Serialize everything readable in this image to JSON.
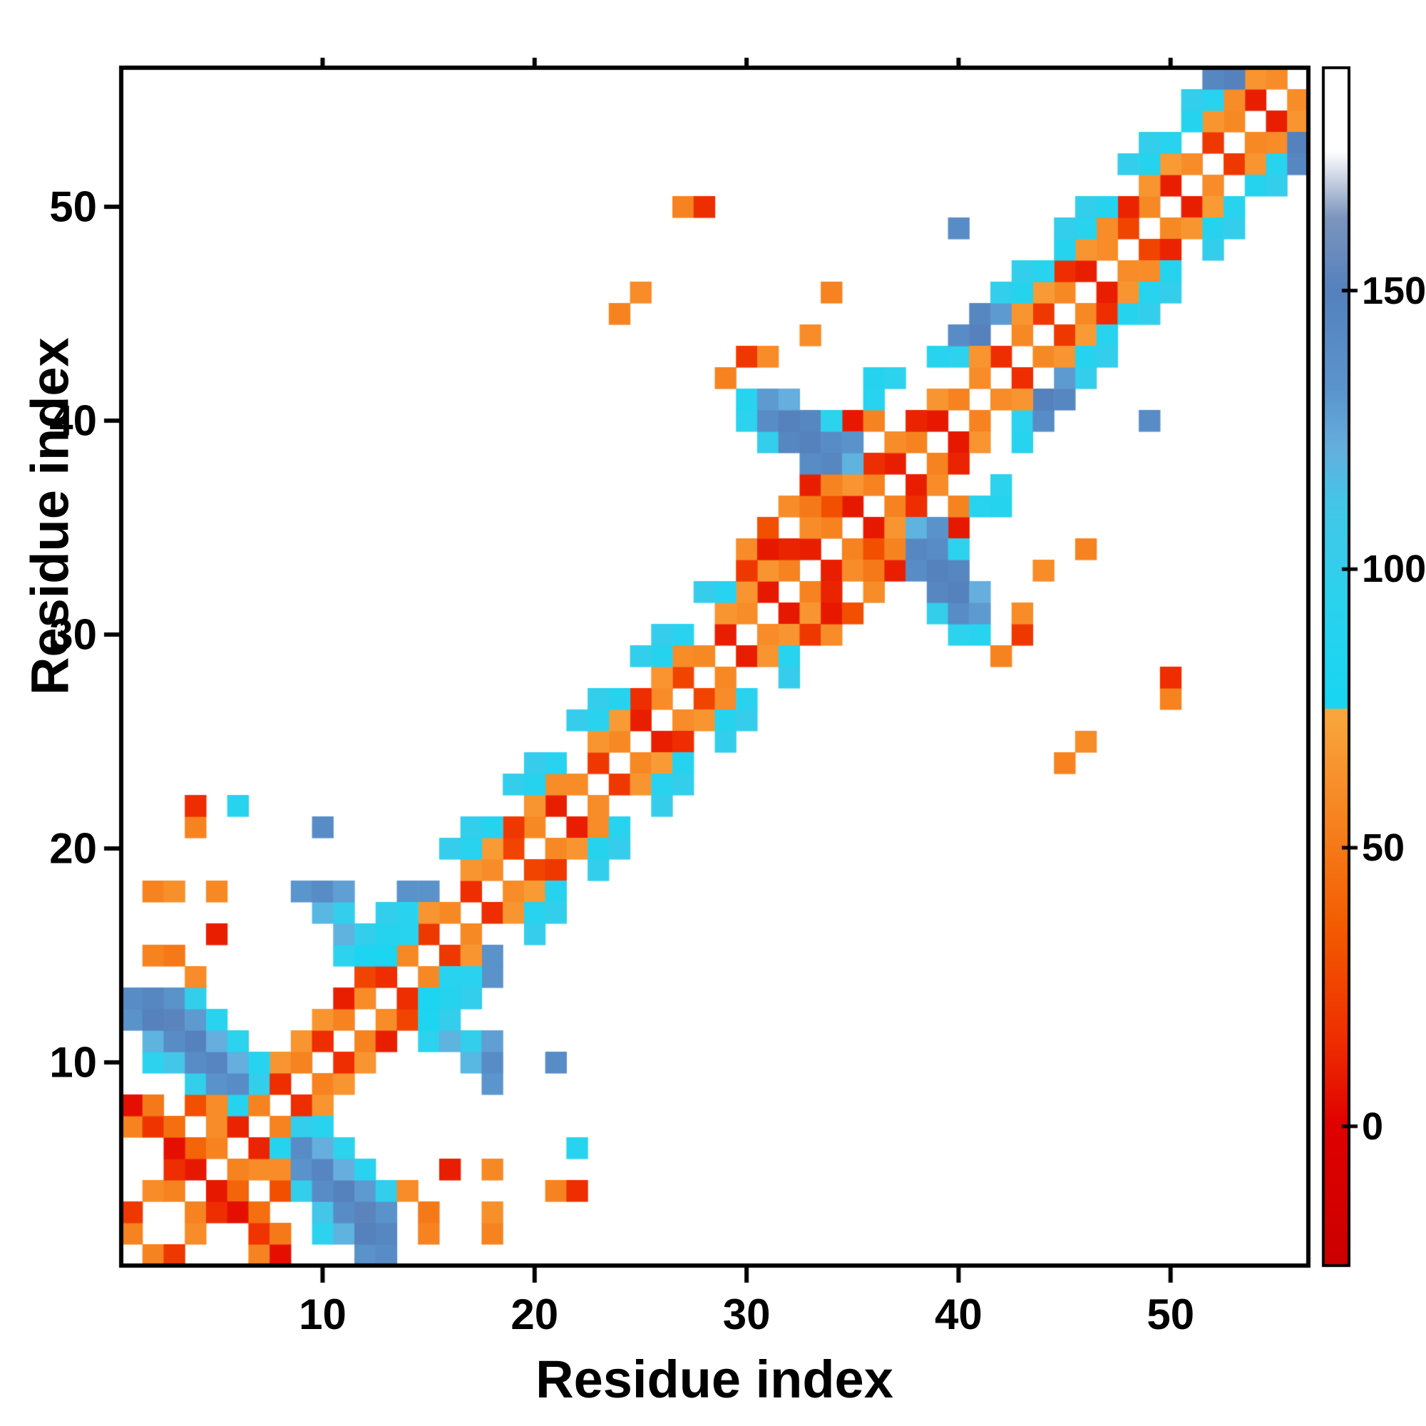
{
  "figure": {
    "xlabel": "Residue index",
    "ylabel": "Residue index"
  },
  "axes": {
    "x_ticks": [
      10,
      20,
      30,
      40,
      50
    ],
    "y_ticks": [
      10,
      20,
      30,
      40,
      50
    ],
    "range": [
      0.5,
      56.5
    ]
  },
  "colorbar": {
    "ticks": [
      0,
      50,
      100,
      150
    ],
    "min": -25,
    "max": 190
  },
  "chart_data": {
    "type": "heatmap",
    "title": "",
    "xlabel": "Residue index",
    "ylabel": "Residue index",
    "n_residues": 56,
    "symmetric": true,
    "xlim": [
      0.5,
      56.5
    ],
    "ylim": [
      0.5,
      56.5
    ],
    "legend": "colorbar right, range ~0-175",
    "colormap_stops": [
      [
        -25,
        "#cc0000"
      ],
      [
        0,
        "#e00000"
      ],
      [
        15,
        "#ee2d00"
      ],
      [
        35,
        "#f35a00"
      ],
      [
        55,
        "#f68320"
      ],
      [
        73,
        "#f9a43c"
      ],
      [
        74.9,
        "#f9a43c"
      ],
      [
        75,
        "#17d6f2"
      ],
      [
        95,
        "#2cd2ee"
      ],
      [
        112,
        "#44c6e8"
      ],
      [
        122,
        "#65aedd"
      ],
      [
        132,
        "#5b95cd"
      ],
      [
        150,
        "#5581bd"
      ],
      [
        163,
        "#7b95bd"
      ],
      [
        170,
        "#c9d2e2"
      ],
      [
        175,
        "#ffffff"
      ],
      [
        190,
        "#ffffff"
      ]
    ],
    "cells": [
      [
        1,
        2,
        55
      ],
      [
        1,
        3,
        20
      ],
      [
        2,
        4,
        60
      ],
      [
        3,
        4,
        55
      ],
      [
        3,
        5,
        15
      ],
      [
        4,
        5,
        8
      ],
      [
        4,
        6,
        40
      ],
      [
        5,
        6,
        55
      ],
      [
        5,
        7,
        60
      ],
      [
        6,
        7,
        12
      ],
      [
        6,
        8,
        88
      ],
      [
        7,
        8,
        55
      ],
      [
        7,
        9,
        100
      ],
      [
        8,
        9,
        15
      ],
      [
        8,
        10,
        65
      ],
      [
        9,
        10,
        55
      ],
      [
        9,
        11,
        65
      ],
      [
        10,
        11,
        15
      ],
      [
        10,
        12,
        65
      ],
      [
        11,
        12,
        55
      ],
      [
        11,
        13,
        10
      ],
      [
        12,
        13,
        60
      ],
      [
        12,
        14,
        25
      ],
      [
        1,
        7,
        55
      ],
      [
        1,
        8,
        5
      ],
      [
        2,
        7,
        18
      ],
      [
        2,
        8,
        50
      ],
      [
        3,
        6,
        5
      ],
      [
        3,
        7,
        45
      ],
      [
        4,
        8,
        30
      ],
      [
        5,
        8,
        60
      ],
      [
        1,
        12,
        135
      ],
      [
        1,
        13,
        140
      ],
      [
        2,
        10,
        95
      ],
      [
        2,
        11,
        120
      ],
      [
        2,
        12,
        150
      ],
      [
        2,
        13,
        145
      ],
      [
        3,
        10,
        112
      ],
      [
        3,
        11,
        140
      ],
      [
        3,
        12,
        152
      ],
      [
        3,
        13,
        135
      ],
      [
        4,
        9,
        100
      ],
      [
        4,
        10,
        140
      ],
      [
        4,
        11,
        150
      ],
      [
        4,
        12,
        130
      ],
      [
        4,
        13,
        100
      ],
      [
        5,
        9,
        135
      ],
      [
        5,
        10,
        146
      ],
      [
        5,
        11,
        122
      ],
      [
        5,
        12,
        92
      ],
      [
        6,
        9,
        140
      ],
      [
        6,
        10,
        122
      ],
      [
        6,
        11,
        95
      ],
      [
        7,
        10,
        90
      ],
      [
        2,
        15,
        55
      ],
      [
        3,
        15,
        50
      ],
      [
        4,
        14,
        60
      ],
      [
        2,
        18,
        55
      ],
      [
        3,
        18,
        62
      ],
      [
        5,
        16,
        10
      ],
      [
        5,
        18,
        58
      ],
      [
        4,
        21,
        55
      ],
      [
        4,
        22,
        15
      ],
      [
        6,
        22,
        90
      ],
      [
        10,
        21,
        140
      ],
      [
        11,
        15,
        95
      ],
      [
        11,
        16,
        120
      ],
      [
        12,
        15,
        82
      ],
      [
        12,
        16,
        100
      ],
      [
        10,
        17,
        118
      ],
      [
        11,
        17,
        100
      ],
      [
        9,
        18,
        132
      ],
      [
        10,
        18,
        140
      ],
      [
        11,
        18,
        128
      ],
      [
        14,
        18,
        135
      ],
      [
        15,
        18,
        135
      ],
      [
        13,
        14,
        15
      ],
      [
        14,
        15,
        58
      ],
      [
        15,
        16,
        20
      ],
      [
        16,
        17,
        58
      ],
      [
        17,
        18,
        15
      ],
      [
        18,
        19,
        60
      ],
      [
        19,
        20,
        25
      ],
      [
        20,
        21,
        58
      ],
      [
        21,
        22,
        10
      ],
      [
        22,
        23,
        60
      ],
      [
        23,
        24,
        20
      ],
      [
        24,
        25,
        58
      ],
      [
        25,
        26,
        10
      ],
      [
        26,
        27,
        60
      ],
      [
        27,
        28,
        25
      ],
      [
        28,
        29,
        58
      ],
      [
        29,
        30,
        10
      ],
      [
        30,
        31,
        60
      ],
      [
        31,
        32,
        8
      ],
      [
        13,
        15,
        80
      ],
      [
        14,
        16,
        90
      ],
      [
        15,
        17,
        65
      ],
      [
        17,
        19,
        65
      ],
      [
        18,
        20,
        68
      ],
      [
        19,
        21,
        20
      ],
      [
        20,
        22,
        65
      ],
      [
        21,
        23,
        60
      ],
      [
        23,
        25,
        65
      ],
      [
        24,
        26,
        68
      ],
      [
        25,
        27,
        15
      ],
      [
        26,
        28,
        65
      ],
      [
        27,
        29,
        60
      ],
      [
        29,
        31,
        65
      ],
      [
        30,
        32,
        65
      ],
      [
        13,
        16,
        88
      ],
      [
        14,
        17,
        92
      ],
      [
        17,
        20,
        90
      ],
      [
        18,
        21,
        88
      ],
      [
        20,
        23,
        88
      ],
      [
        21,
        24,
        90
      ],
      [
        23,
        26,
        92
      ],
      [
        24,
        27,
        88
      ],
      [
        26,
        29,
        88
      ],
      [
        27,
        30,
        92
      ],
      [
        29,
        32,
        90
      ],
      [
        13,
        17,
        100
      ],
      [
        16,
        20,
        102
      ],
      [
        17,
        21,
        100
      ],
      [
        19,
        23,
        100
      ],
      [
        20,
        24,
        102
      ],
      [
        22,
        26,
        102
      ],
      [
        23,
        27,
        100
      ],
      [
        25,
        29,
        100
      ],
      [
        26,
        30,
        102
      ],
      [
        28,
        32,
        102
      ],
      [
        32,
        33,
        55
      ],
      [
        33,
        34,
        10
      ],
      [
        34,
        35,
        55
      ],
      [
        35,
        36,
        8
      ],
      [
        36,
        37,
        55
      ],
      [
        37,
        38,
        10
      ],
      [
        38,
        39,
        55
      ],
      [
        39,
        40,
        8
      ],
      [
        40,
        41,
        55
      ],
      [
        31,
        33,
        65
      ],
      [
        32,
        34,
        12
      ],
      [
        33,
        35,
        60
      ],
      [
        34,
        36,
        30
      ],
      [
        35,
        37,
        65
      ],
      [
        36,
        38,
        15
      ],
      [
        37,
        39,
        60
      ],
      [
        38,
        40,
        12
      ],
      [
        39,
        41,
        65
      ],
      [
        30,
        33,
        20
      ],
      [
        30,
        34,
        60
      ],
      [
        31,
        34,
        8
      ],
      [
        31,
        35,
        30
      ],
      [
        32,
        36,
        60
      ],
      [
        33,
        36,
        50
      ],
      [
        33,
        37,
        10
      ],
      [
        34,
        37,
        55
      ],
      [
        35,
        40,
        8
      ],
      [
        36,
        40,
        55
      ],
      [
        30,
        40,
        95
      ],
      [
        30,
        41,
        90
      ],
      [
        31,
        39,
        100
      ],
      [
        31,
        40,
        140
      ],
      [
        31,
        41,
        130
      ],
      [
        32,
        39,
        145
      ],
      [
        32,
        40,
        150
      ],
      [
        32,
        41,
        122
      ],
      [
        33,
        38,
        140
      ],
      [
        33,
        39,
        150
      ],
      [
        33,
        40,
        145
      ],
      [
        34,
        38,
        145
      ],
      [
        34,
        39,
        140
      ],
      [
        34,
        40,
        95
      ],
      [
        35,
        38,
        120
      ],
      [
        35,
        39,
        135
      ],
      [
        36,
        41,
        90
      ],
      [
        36,
        42,
        88
      ],
      [
        37,
        42,
        95
      ],
      [
        39,
        43,
        90
      ],
      [
        40,
        43,
        95
      ],
      [
        40,
        44,
        140
      ],
      [
        41,
        44,
        150
      ],
      [
        41,
        45,
        145
      ],
      [
        42,
        45,
        130
      ],
      [
        42,
        46,
        100
      ],
      [
        29,
        42,
        55
      ],
      [
        30,
        43,
        20
      ],
      [
        31,
        43,
        60
      ],
      [
        24,
        45,
        55
      ],
      [
        25,
        46,
        60
      ],
      [
        27,
        50,
        55
      ],
      [
        28,
        50,
        15
      ],
      [
        33,
        44,
        60
      ],
      [
        34,
        46,
        55
      ],
      [
        40,
        49,
        140
      ],
      [
        41,
        42,
        60
      ],
      [
        42,
        43,
        15
      ],
      [
        43,
        44,
        58
      ],
      [
        44,
        45,
        20
      ],
      [
        45,
        46,
        58
      ],
      [
        46,
        47,
        10
      ],
      [
        47,
        48,
        60
      ],
      [
        48,
        49,
        25
      ],
      [
        49,
        50,
        58
      ],
      [
        50,
        51,
        10
      ],
      [
        51,
        52,
        60
      ],
      [
        52,
        53,
        20
      ],
      [
        53,
        54,
        58
      ],
      [
        54,
        55,
        10
      ],
      [
        55,
        56,
        60
      ],
      [
        41,
        43,
        65
      ],
      [
        43,
        45,
        65
      ],
      [
        44,
        46,
        68
      ],
      [
        45,
        47,
        15
      ],
      [
        46,
        48,
        65
      ],
      [
        47,
        49,
        60
      ],
      [
        48,
        50,
        12
      ],
      [
        49,
        51,
        65
      ],
      [
        50,
        52,
        68
      ],
      [
        52,
        54,
        65
      ],
      [
        53,
        55,
        60
      ],
      [
        54,
        56,
        65
      ],
      [
        43,
        46,
        88
      ],
      [
        44,
        47,
        90
      ],
      [
        45,
        48,
        88
      ],
      [
        46,
        49,
        90
      ],
      [
        47,
        50,
        88
      ],
      [
        49,
        52,
        88
      ],
      [
        50,
        53,
        90
      ],
      [
        51,
        54,
        88
      ],
      [
        52,
        55,
        90
      ],
      [
        53,
        56,
        150
      ],
      [
        43,
        47,
        100
      ],
      [
        45,
        49,
        100
      ],
      [
        46,
        50,
        100
      ],
      [
        48,
        52,
        100
      ],
      [
        49,
        53,
        100
      ],
      [
        51,
        55,
        100
      ],
      [
        52,
        56,
        145
      ]
    ]
  }
}
